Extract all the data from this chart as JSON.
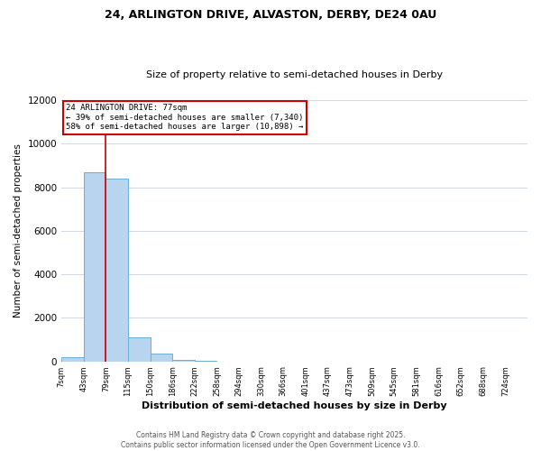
{
  "title_line1": "24, ARLINGTON DRIVE, ALVASTON, DERBY, DE24 0AU",
  "title_line2": "Size of property relative to semi-detached houses in Derby",
  "xlabel": "Distribution of semi-detached houses by size in Derby",
  "ylabel": "Number of semi-detached properties",
  "bin_labels": [
    "7sqm",
    "43sqm",
    "79sqm",
    "115sqm",
    "150sqm",
    "186sqm",
    "222sqm",
    "258sqm",
    "294sqm",
    "330sqm",
    "366sqm",
    "401sqm",
    "437sqm",
    "473sqm",
    "509sqm",
    "545sqm",
    "581sqm",
    "616sqm",
    "652sqm",
    "688sqm",
    "724sqm"
  ],
  "bar_values": [
    200,
    8700,
    8400,
    1100,
    350,
    50,
    5,
    0,
    0,
    0,
    0,
    0,
    0,
    0,
    0,
    0,
    0,
    0,
    0,
    0
  ],
  "bar_color": "#b8d4ee",
  "bar_edgecolor": "#6aaed6",
  "property_label": "24 ARLINGTON DRIVE: 77sqm",
  "pct_smaller": 39,
  "n_smaller": 7340,
  "pct_larger": 58,
  "n_larger": 10898,
  "vline_color": "#cc0000",
  "ylim": [
    0,
    12000
  ],
  "yticks": [
    0,
    2000,
    4000,
    6000,
    8000,
    10000,
    12000
  ],
  "annotation_box_edgecolor": "#cc0000",
  "background_color": "#ffffff",
  "grid_color": "#d0d8e8",
  "footer_line1": "Contains HM Land Registry data © Crown copyright and database right 2025.",
  "footer_line2": "Contains public sector information licensed under the Open Government Licence v3.0."
}
